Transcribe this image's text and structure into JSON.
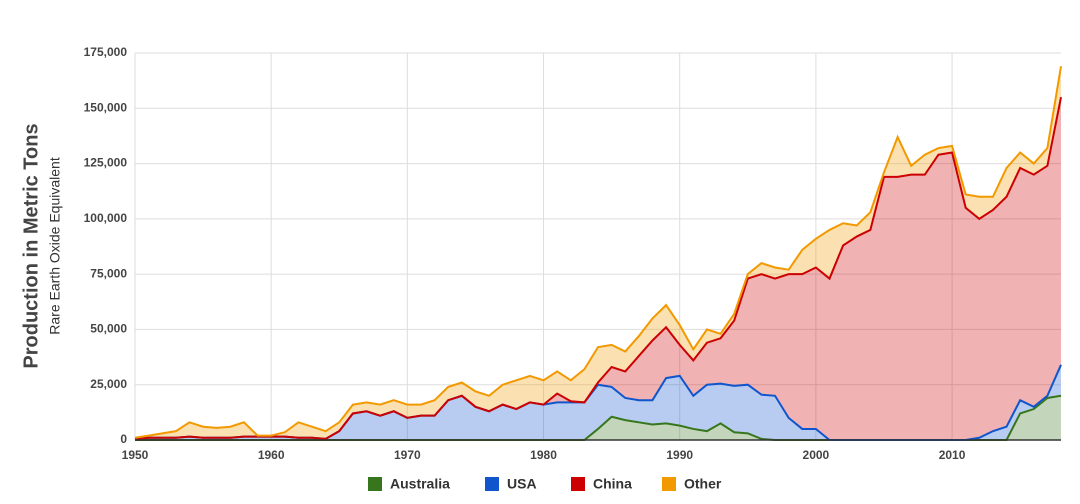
{
  "chart_data": {
    "type": "stacked_area",
    "y_label": "Production in Metric Tons",
    "y_sublabel": "Rare Earth Oxide Equivalent",
    "x": [
      1950,
      1951,
      1952,
      1953,
      1954,
      1955,
      1956,
      1957,
      1958,
      1959,
      1960,
      1961,
      1962,
      1963,
      1964,
      1965,
      1966,
      1967,
      1968,
      1969,
      1970,
      1971,
      1972,
      1973,
      1974,
      1975,
      1976,
      1977,
      1978,
      1979,
      1980,
      1981,
      1982,
      1983,
      1984,
      1985,
      1986,
      1987,
      1988,
      1989,
      1990,
      1991,
      1992,
      1993,
      1994,
      1995,
      1996,
      1997,
      1998,
      1999,
      2000,
      2001,
      2002,
      2003,
      2004,
      2005,
      2006,
      2007,
      2008,
      2009,
      2010,
      2011,
      2012,
      2013,
      2014,
      2015,
      2016,
      2017,
      2018
    ],
    "series": [
      {
        "name": "Australia",
        "color": "#38761d",
        "values": [
          0,
          0,
          0,
          0,
          0,
          0,
          0,
          0,
          0,
          0,
          0,
          0,
          0,
          0,
          0,
          0,
          0,
          0,
          0,
          0,
          0,
          0,
          0,
          0,
          0,
          0,
          0,
          0,
          0,
          0,
          0,
          0,
          0,
          0,
          5000,
          10500,
          9000,
          8000,
          7000,
          7500,
          6500,
          5000,
          4000,
          7500,
          3500,
          3000,
          500,
          0,
          0,
          0,
          0,
          0,
          0,
          0,
          0,
          0,
          0,
          0,
          0,
          0,
          0,
          0,
          0,
          0,
          0,
          12000,
          14000,
          19000,
          20000
        ]
      },
      {
        "name": "USA",
        "color": "#1155cc",
        "values": [
          500,
          1000,
          1000,
          1000,
          1500,
          1000,
          1000,
          1000,
          1500,
          1500,
          1500,
          1500,
          1000,
          1000,
          500,
          4000,
          12000,
          13000,
          11000,
          13000,
          10000,
          11000,
          11000,
          18000,
          20000,
          15000,
          13000,
          16000,
          14000,
          17000,
          16000,
          17000,
          17000,
          17000,
          20000,
          13500,
          10000,
          10000,
          11000,
          20500,
          22500,
          15000,
          21000,
          18000,
          21000,
          22000,
          20000,
          20000,
          10000,
          5000,
          5000,
          0,
          0,
          0,
          0,
          0,
          0,
          0,
          0,
          0,
          0,
          0,
          1000,
          4000,
          6000,
          6000,
          1000,
          1000,
          14000
        ]
      },
      {
        "name": "China",
        "color": "#cc0000",
        "values": [
          0,
          0,
          0,
          0,
          0,
          0,
          0,
          0,
          0,
          0,
          0,
          0,
          0,
          0,
          0,
          0,
          0,
          0,
          0,
          0,
          0,
          0,
          0,
          0,
          0,
          0,
          0,
          0,
          0,
          0,
          0,
          4000,
          500,
          0,
          1000,
          9000,
          12000,
          20000,
          27000,
          23000,
          14000,
          16000,
          19000,
          20500,
          29500,
          48000,
          54500,
          53000,
          65000,
          70000,
          73000,
          73000,
          88000,
          92000,
          95000,
          119000,
          119000,
          120000,
          120000,
          129000,
          130000,
          105000,
          99000,
          100000,
          104000,
          105000,
          105000,
          104000,
          121000
        ]
      },
      {
        "name": "Other",
        "color": "#f29900",
        "values": [
          500,
          1000,
          2000,
          3000,
          6500,
          5000,
          4500,
          5000,
          6500,
          500,
          500,
          2000,
          7000,
          5000,
          3500,
          4000,
          4000,
          4000,
          5000,
          5000,
          6000,
          5000,
          7000,
          6000,
          6000,
          7000,
          7000,
          9000,
          13000,
          12000,
          11000,
          10000,
          9500,
          15000,
          16000,
          10000,
          9000,
          9000,
          10000,
          10000,
          9000,
          5000,
          6000,
          2000,
          3000,
          2000,
          5000,
          5000,
          2000,
          11000,
          13000,
          22000,
          10000,
          5000,
          8000,
          2000,
          18000,
          4000,
          9000,
          3000,
          3000,
          6000,
          10000,
          6000,
          13000,
          7000,
          5000,
          8000,
          14000
        ]
      }
    ],
    "xlim": [
      1950,
      2018
    ],
    "xticks": [
      1950,
      1960,
      1970,
      1980,
      1990,
      2000,
      2010
    ],
    "ylim": [
      0,
      175000
    ],
    "yticks": [
      0,
      {
        "value": 25000,
        "label": "25,000"
      },
      {
        "value": 50000,
        "label": "50,000"
      },
      {
        "value": 75000,
        "label": "75,000"
      },
      {
        "value": 100000,
        "label": "100,000"
      },
      {
        "value": 125000,
        "label": "125,000"
      },
      {
        "value": 150000,
        "label": "150,000"
      },
      {
        "value": 175000,
        "label": "175,000"
      }
    ],
    "grid": true,
    "legend": "bottom"
  }
}
